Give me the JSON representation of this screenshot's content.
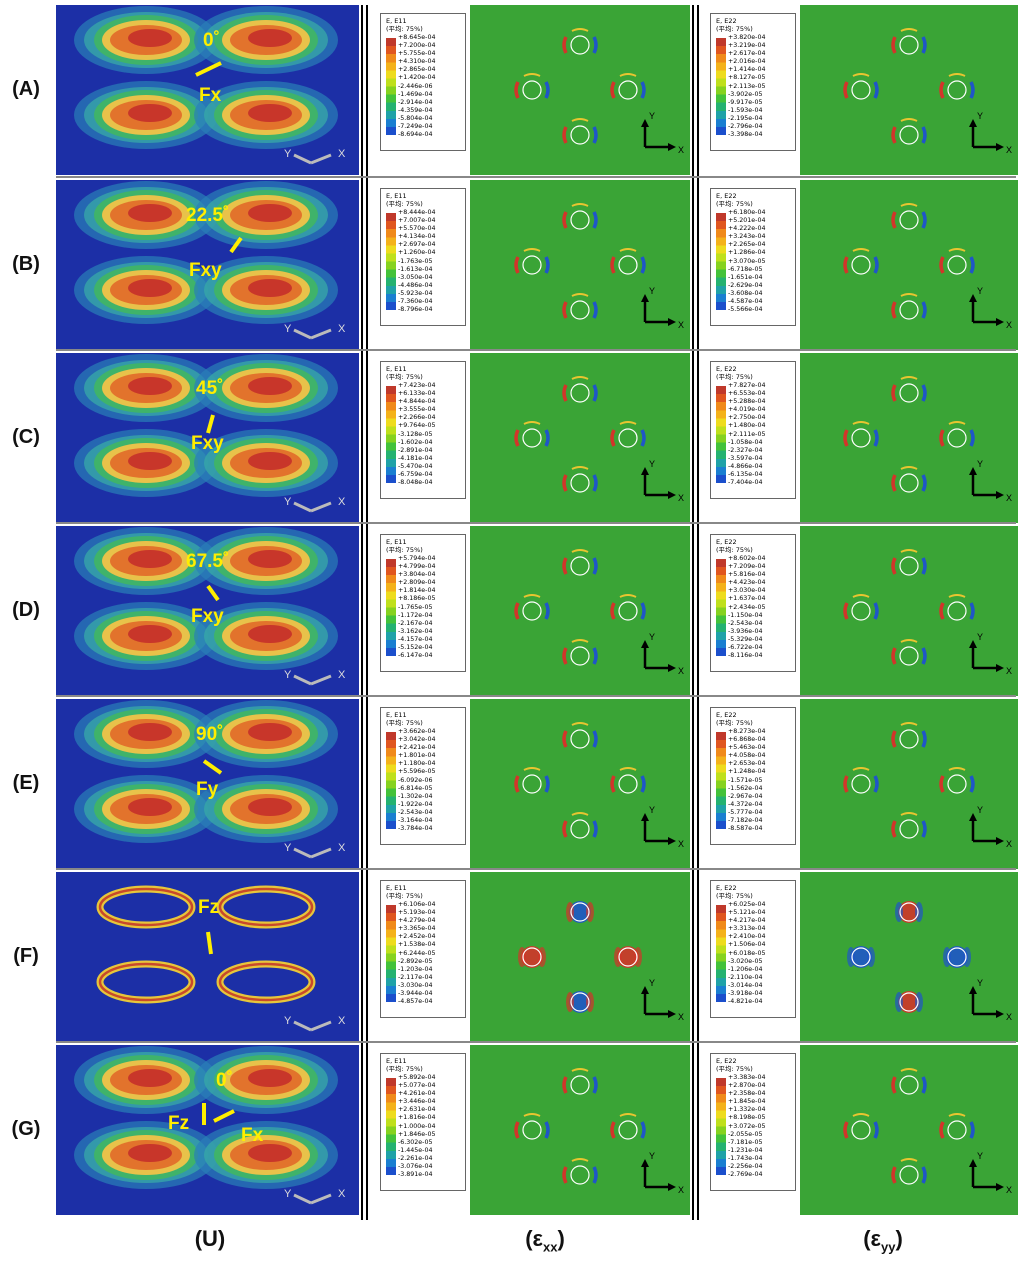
{
  "row_labels": [
    "(A)",
    "(B)",
    "(C)",
    "(D)",
    "(E)",
    "(F)",
    "(G)"
  ],
  "column_labels": {
    "u": "(U)",
    "exx_base": "(ε",
    "exx_sub": "xx",
    "exx_close": ")",
    "eyy_base": "(ε",
    "eyy_sub": "yy",
    "eyy_close": ")"
  },
  "axis_labels": {
    "x": "X",
    "y": "Y"
  },
  "legend_averaging": "(平均: 75%)",
  "colors": {
    "panel_blue": "#1c2fa6",
    "contour_green": "#3aa436",
    "annotation_yellow": "#ffee00"
  },
  "rows": [
    {
      "annotations": [
        {
          "text": "0˚"
        },
        {
          "text": "Fx"
        }
      ],
      "exx_legend": {
        "title": "E, E11",
        "values": [
          "+8.645e-04",
          "+7.200e-04",
          "+5.755e-04",
          "+4.310e-04",
          "+2.865e-04",
          "+1.420e-04",
          "-2.446e-06",
          "-1.469e-04",
          "-2.914e-04",
          "-4.359e-04",
          "-5.804e-04",
          "-7.249e-04",
          "-8.694e-04"
        ]
      },
      "eyy_legend": {
        "title": "E, E22",
        "values": [
          "+3.820e-04",
          "+3.219e-04",
          "+2.617e-04",
          "+2.016e-04",
          "+1.414e-04",
          "+8.127e-05",
          "+2.113e-05",
          "-3.902e-05",
          "-9.917e-05",
          "-1.593e-04",
          "-2.195e-04",
          "-2.796e-04",
          "-3.398e-04"
        ]
      }
    },
    {
      "annotations": [
        {
          "text": "22.5˚"
        },
        {
          "text": "Fxy"
        }
      ],
      "exx_legend": {
        "title": "E, E11",
        "values": [
          "+8.444e-04",
          "+7.007e-04",
          "+5.570e-04",
          "+4.134e-04",
          "+2.697e-04",
          "+1.260e-04",
          "-1.763e-05",
          "-1.613e-04",
          "-3.050e-04",
          "-4.486e-04",
          "-5.923e-04",
          "-7.360e-04",
          "-8.796e-04"
        ]
      },
      "eyy_legend": {
        "title": "E, E22",
        "values": [
          "+6.180e-04",
          "+5.201e-04",
          "+4.222e-04",
          "+3.243e-04",
          "+2.265e-04",
          "+1.286e-04",
          "+3.070e-05",
          "-6.718e-05",
          "-1.651e-04",
          "-2.629e-04",
          "-3.608e-04",
          "-4.587e-04",
          "-5.566e-04"
        ]
      }
    },
    {
      "annotations": [
        {
          "text": "45˚"
        },
        {
          "text": "Fxy"
        }
      ],
      "exx_legend": {
        "title": "E, E11",
        "values": [
          "+7.423e-04",
          "+6.133e-04",
          "+4.844e-04",
          "+3.555e-04",
          "+2.266e-04",
          "+9.764e-05",
          "-3.128e-05",
          "-1.602e-04",
          "-2.891e-04",
          "-4.181e-04",
          "-5.470e-04",
          "-6.759e-04",
          "-8.048e-04"
        ]
      },
      "eyy_legend": {
        "title": "E, E22",
        "values": [
          "+7.827e-04",
          "+6.553e-04",
          "+5.288e-04",
          "+4.019e-04",
          "+2.750e-04",
          "+1.480e-04",
          "+2.111e-05",
          "-1.058e-04",
          "-2.327e-04",
          "-3.597e-04",
          "-4.866e-04",
          "-6.135e-04",
          "-7.404e-04"
        ]
      }
    },
    {
      "annotations": [
        {
          "text": "67.5˚"
        },
        {
          "text": "Fxy"
        }
      ],
      "exx_legend": {
        "title": "E, E11",
        "values": [
          "+5.794e-04",
          "+4.799e-04",
          "+3.804e-04",
          "+2.809e-04",
          "+1.814e-04",
          "+8.186e-05",
          "-1.765e-05",
          "-1.172e-04",
          "-2.167e-04",
          "-3.162e-04",
          "-4.157e-04",
          "-5.152e-04",
          "-6.147e-04"
        ]
      },
      "eyy_legend": {
        "title": "E, E22",
        "values": [
          "+8.602e-04",
          "+7.209e-04",
          "+5.816e-04",
          "+4.423e-04",
          "+3.030e-04",
          "+1.637e-04",
          "+2.434e-05",
          "-1.150e-04",
          "-2.543e-04",
          "-3.936e-04",
          "-5.329e-04",
          "-6.722e-04",
          "-8.116e-04"
        ]
      }
    },
    {
      "annotations": [
        {
          "text": "90˚"
        },
        {
          "text": "Fy"
        }
      ],
      "exx_legend": {
        "title": "E, E11",
        "values": [
          "+3.662e-04",
          "+3.042e-04",
          "+2.421e-04",
          "+1.801e-04",
          "+1.180e-04",
          "+5.596e-05",
          "-6.092e-06",
          "-6.814e-05",
          "-1.302e-04",
          "-1.922e-04",
          "-2.543e-04",
          "-3.164e-04",
          "-3.784e-04"
        ]
      },
      "eyy_legend": {
        "title": "E, E22",
        "values": [
          "+8.273e-04",
          "+6.868e-04",
          "+5.463e-04",
          "+4.058e-04",
          "+2.653e-04",
          "+1.248e-04",
          "-1.571e-05",
          "-1.562e-04",
          "-2.967e-04",
          "-4.372e-04",
          "-5.777e-04",
          "-7.182e-04",
          "-8.587e-04"
        ]
      }
    },
    {
      "annotations": [
        {
          "text": "Fz"
        }
      ],
      "exx_legend": {
        "title": "E, E11",
        "values": [
          "+6.106e-04",
          "+5.193e-04",
          "+4.279e-04",
          "+3.365e-04",
          "+2.452e-04",
          "+1.538e-04",
          "+6.244e-05",
          "-2.892e-05",
          "-1.203e-04",
          "-2.117e-04",
          "-3.030e-04",
          "-3.944e-04",
          "-4.857e-04"
        ]
      },
      "eyy_legend": {
        "title": "E, E22",
        "values": [
          "+6.025e-04",
          "+5.121e-04",
          "+4.217e-04",
          "+3.313e-04",
          "+2.410e-04",
          "+1.506e-04",
          "+6.018e-05",
          "-3.020e-05",
          "-1.206e-04",
          "-2.110e-04",
          "-3.014e-04",
          "-3.918e-04",
          "-4.821e-04"
        ]
      }
    },
    {
      "annotations": [
        {
          "text": "0˚"
        },
        {
          "text": "Fz"
        },
        {
          "text": "Fx"
        }
      ],
      "exx_legend": {
        "title": "E, E11",
        "values": [
          "+5.892e-04",
          "+5.077e-04",
          "+4.261e-04",
          "+3.446e-04",
          "+2.631e-04",
          "+1.816e-04",
          "+1.000e-04",
          "+1.846e-05",
          "-6.302e-05",
          "-1.445e-04",
          "-2.261e-04",
          "-3.076e-04",
          "-3.891e-04"
        ]
      },
      "eyy_legend": {
        "title": "E, E22",
        "values": [
          "+3.383e-04",
          "+2.870e-04",
          "+2.358e-04",
          "+1.845e-04",
          "+1.332e-04",
          "+8.198e-05",
          "+3.072e-05",
          "-2.055e-05",
          "-7.181e-05",
          "-1.231e-04",
          "-1.743e-04",
          "-2.256e-04",
          "-2.769e-04"
        ]
      }
    }
  ]
}
